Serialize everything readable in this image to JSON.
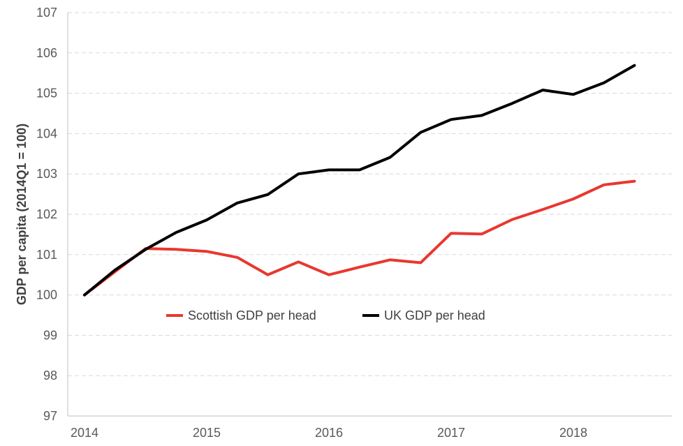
{
  "chart_data": {
    "type": "line",
    "ylabel": "GDP per capita (2014Q1 = 100)",
    "ylim": [
      97,
      107
    ],
    "yticks": [
      97,
      98,
      99,
      100,
      101,
      102,
      103,
      104,
      105,
      106,
      107
    ],
    "xticks": [
      "2014",
      "2015",
      "2016",
      "2017",
      "2018"
    ],
    "x": [
      "2014Q1",
      "2014Q2",
      "2014Q3",
      "2014Q4",
      "2015Q1",
      "2015Q2",
      "2015Q3",
      "2015Q4",
      "2016Q1",
      "2016Q2",
      "2016Q3",
      "2016Q4",
      "2017Q1",
      "2017Q2",
      "2017Q3",
      "2017Q4",
      "2018Q1",
      "2018Q2",
      "2018Q3"
    ],
    "grid": "horizontal dashed",
    "legend_position": "inside, lower-center",
    "series": [
      {
        "name": "Scottish GDP per head",
        "color": "#e8382f",
        "values": [
          100.0,
          100.58,
          101.15,
          101.13,
          101.08,
          100.93,
          100.5,
          100.82,
          100.5,
          100.69,
          100.87,
          100.8,
          101.53,
          101.51,
          101.87,
          102.12,
          102.38,
          102.73,
          102.82
        ]
      },
      {
        "name": "UK GDP per head",
        "color": "#000000",
        "values": [
          100.0,
          100.62,
          101.13,
          101.55,
          101.86,
          102.28,
          102.49,
          103.0,
          103.1,
          103.1,
          103.41,
          104.03,
          104.35,
          104.45,
          104.75,
          105.08,
          104.97,
          105.26,
          105.69
        ]
      }
    ]
  }
}
